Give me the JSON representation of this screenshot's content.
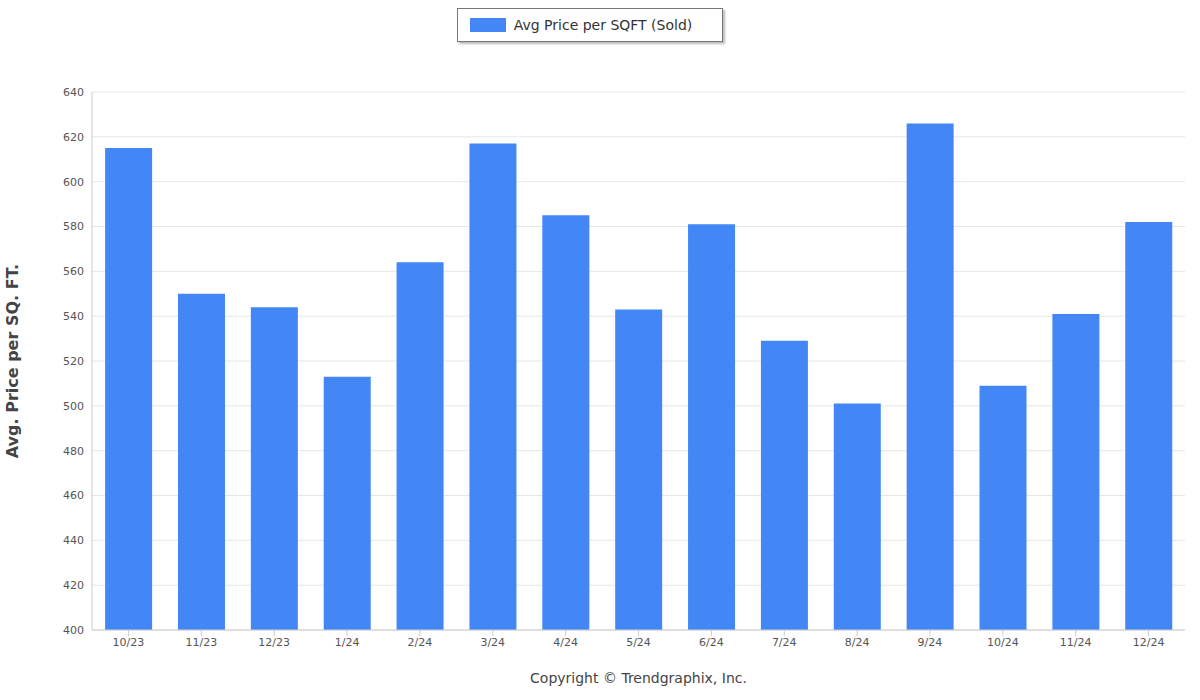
{
  "chart_data": {
    "type": "bar",
    "ylabel": "Avg. Price per SQ. FT.",
    "categories": [
      "10/23",
      "11/23",
      "12/23",
      "1/24",
      "2/24",
      "3/24",
      "4/24",
      "5/24",
      "6/24",
      "7/24",
      "8/24",
      "9/24",
      "10/24",
      "11/24",
      "12/24"
    ],
    "series": [
      {
        "name": "Avg Price per SQFT (Sold)",
        "color": "#4287f5",
        "values": [
          615,
          550,
          544,
          513,
          564,
          617,
          585,
          543,
          581,
          529,
          501,
          626,
          509,
          541,
          582
        ]
      }
    ],
    "ylim": [
      400,
      640
    ],
    "yticks": [
      400,
      420,
      440,
      460,
      480,
      500,
      520,
      540,
      560,
      580,
      600,
      620,
      640
    ],
    "grid": true,
    "legend": "top",
    "annotations": [
      "Copyright © Trendgraphix, Inc."
    ]
  }
}
